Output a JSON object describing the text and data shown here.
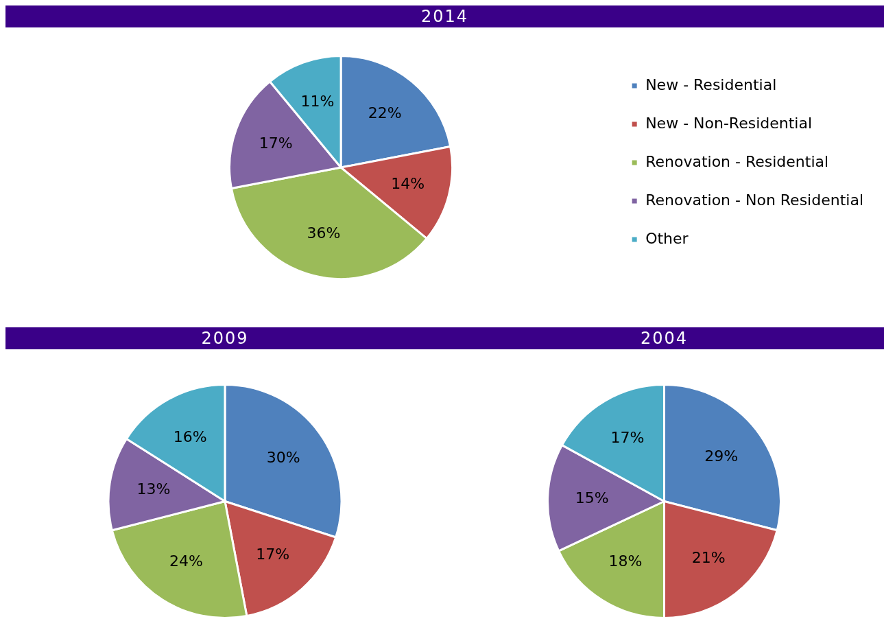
{
  "chart_data": [
    {
      "type": "pie",
      "title": "2014",
      "categories": [
        "New - Residential",
        "New - Non-Residential",
        "Renovation - Residential",
        "Renovation - Non Residential",
        "Other"
      ],
      "values": [
        22,
        14,
        36,
        17,
        11
      ],
      "value_labels": [
        "22%",
        "14%",
        "36%",
        "17%",
        "11%"
      ],
      "colors": [
        "#4f81bd",
        "#c0504d",
        "#9bbb59",
        "#8064a2",
        "#4bacc6"
      ],
      "legend": "right"
    },
    {
      "type": "pie",
      "title": "2009",
      "categories": [
        null,
        null,
        null,
        null,
        null
      ],
      "values": [
        30,
        17,
        24,
        13,
        16
      ],
      "value_labels": [
        "30%",
        "17%",
        "24%",
        "13%",
        "16%"
      ],
      "colors": [
        "#4f81bd",
        "#c0504d",
        "#9bbb59",
        "#8064a2",
        "#4bacc6"
      ]
    },
    {
      "type": "pie",
      "title": "2004",
      "categories": [
        null,
        null,
        null,
        null,
        null
      ],
      "values": [
        29,
        21,
        18,
        15,
        17
      ],
      "value_labels": [
        "29%",
        "21%",
        "18%",
        "15%",
        "17%"
      ],
      "colors": [
        "#4f81bd",
        "#c0504d",
        "#9bbb59",
        "#8064a2",
        "#4bacc6"
      ]
    }
  ]
}
